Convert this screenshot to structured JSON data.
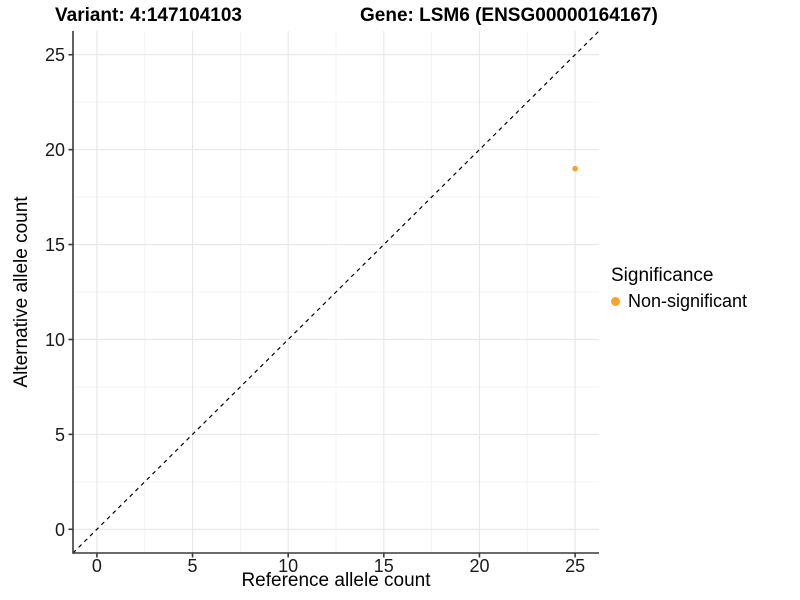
{
  "header": {
    "title_variant": "Variant: 4:147104103",
    "title_gene": "Gene: LSM6 (ENSG00000164167)"
  },
  "axes": {
    "xlabel": "Reference allele count",
    "ylabel": "Alternative allele count"
  },
  "legend": {
    "title": "Significance",
    "entries": [
      {
        "label": "Non-significant",
        "color": "#F9A12B"
      }
    ]
  },
  "chart_data": {
    "type": "scatter",
    "title": "Variant: 4:147104103    Gene: LSM6 (ENSG00000164167)",
    "xlabel": "Reference allele count",
    "ylabel": "Alternative allele count",
    "xlim": [
      -1.25,
      26.25
    ],
    "ylim": [
      -1.25,
      26.25
    ],
    "xticks": [
      0,
      5,
      10,
      15,
      20,
      25
    ],
    "yticks": [
      0,
      5,
      10,
      15,
      20,
      25
    ],
    "xminor": [
      2.5,
      7.5,
      12.5,
      17.5,
      22.5
    ],
    "yminor": [
      2.5,
      7.5,
      12.5,
      17.5,
      22.5
    ],
    "grid": "major+minor",
    "legend_position": "right",
    "reference_line": {
      "type": "identity y=x",
      "style": "dashed",
      "color": "#000000"
    },
    "series": [
      {
        "name": "Non-significant",
        "color": "#F9A12B",
        "marker": "circle",
        "points": [
          {
            "x": 25,
            "y": 19
          }
        ]
      }
    ]
  },
  "colors": {
    "background": "#FFFFFF",
    "grid_major": "#E7E7E7",
    "grid_minor": "#F3F3F3",
    "axis_line": "#3A3A3A",
    "tick_mark": "#3A3A3A",
    "tick_label": "#1A1A1A",
    "title_text": "#000000",
    "point": "#F9A12B"
  }
}
